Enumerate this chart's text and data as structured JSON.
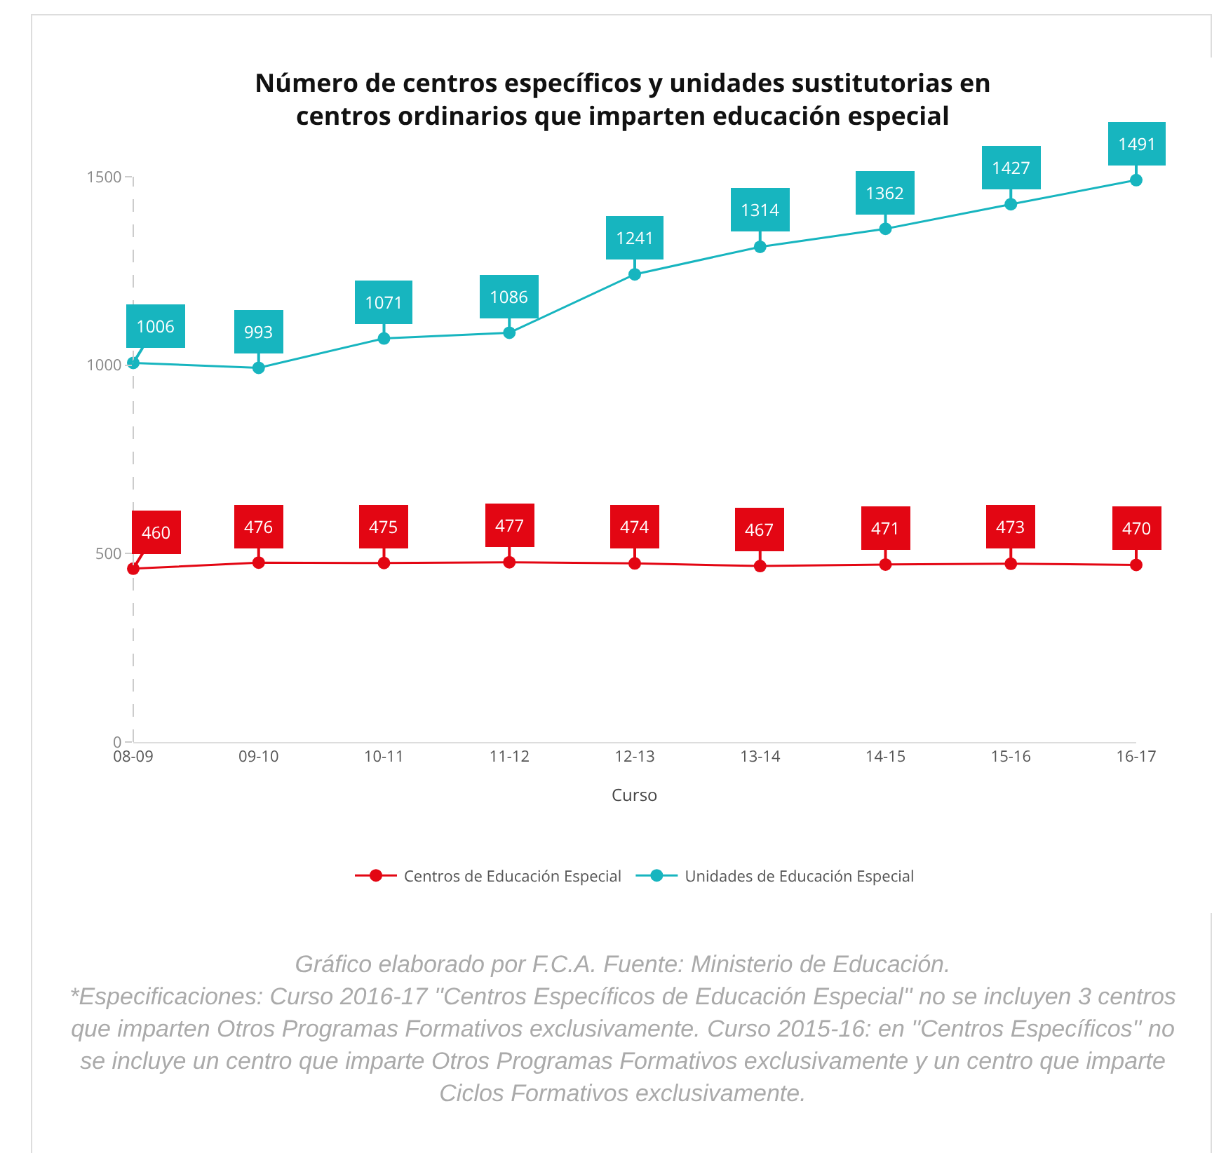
{
  "chart_data": {
    "type": "line",
    "title": "Número de centros específicos y unidades sustitutorias en\ncentros ordinarios que imparten educación especial",
    "xlabel": "Curso",
    "categories": [
      "08-09",
      "09-10",
      "10-11",
      "11-12",
      "12-13",
      "13-14",
      "14-15",
      "15-16",
      "16-17"
    ],
    "series": [
      {
        "name": "Centros de Educación Especial",
        "color": "#e30613",
        "values": [
          460,
          476,
          475,
          477,
          474,
          467,
          471,
          473,
          470
        ]
      },
      {
        "name": "Unidades de Educación Especial",
        "color": "#17b5bf",
        "values": [
          1006,
          993,
          1071,
          1086,
          1241,
          1314,
          1362,
          1427,
          1491
        ]
      }
    ],
    "ylim": [
      0,
      1500
    ],
    "yticks": [
      0,
      500,
      1000,
      1500
    ],
    "grid": false,
    "legend": "bottom",
    "marker": "circle",
    "line_style": "solid",
    "data_labels": true,
    "annotations": [
      "Gráfico elaborado por F.C.A. Fuente: Ministerio de Educación.",
      "*Especificaciones: Curso 2016-17 ''Centros Específicos de Educación Especial'' no se incluyen 3 centros que imparten Otros Programas Formativos exclusivamente. Curso 2015-16: en ''Centros Específicos'' no se incluye un centro que imparte Otros Programas Formativos exclusivamente y un centro que imparte Ciclos Formativos exclusivamente."
    ]
  }
}
